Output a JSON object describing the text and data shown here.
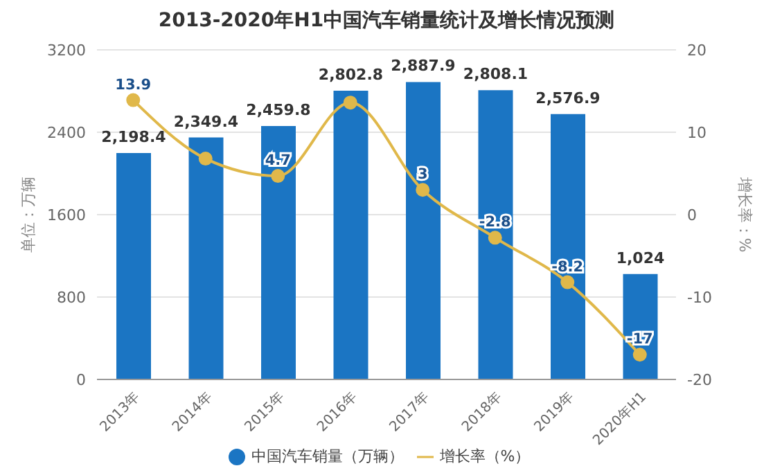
{
  "chart_data": {
    "type": "bar",
    "title": "2013-2020年H1中国汽车销量统计及增长情况预测",
    "categories": [
      "2013年",
      "2014年",
      "2015年",
      "2016年",
      "2017年",
      "2018年",
      "2019年",
      "2020年H1"
    ],
    "series": [
      {
        "name": "中国汽车销量（万辆）",
        "color": "#1b75c3",
        "values": [
          2198.4,
          2349.4,
          2459.8,
          2802.8,
          2887.9,
          2808.1,
          2576.9,
          1024
        ],
        "value_labels": [
          "2,198.4",
          "2,349.4",
          "2,459.8",
          "2,802.8",
          "2,887.9",
          "2,808.1",
          "2,576.9",
          "1,024"
        ]
      },
      {
        "name": "增长率（%）",
        "type": "line",
        "axis": "y2",
        "color": "#e0b84a",
        "values": [
          13.9,
          6.8,
          4.7,
          13.6,
          3,
          -2.8,
          -8.2,
          -17
        ],
        "value_labels": [
          "13.9",
          null,
          "4.7",
          null,
          "3",
          "-2.8",
          "-8.2",
          "-17"
        ]
      }
    ],
    "ylabel": "单位：万辆",
    "y2label": "增长率：%",
    "ylim": [
      0,
      3200
    ],
    "yticks": [
      0,
      800,
      1600,
      2400,
      3200
    ],
    "y2lim": [
      -20,
      20
    ],
    "y2ticks": [
      -20,
      -10,
      0,
      10,
      20
    ],
    "grid": "y",
    "legend": "bottom",
    "marker": "circle"
  }
}
